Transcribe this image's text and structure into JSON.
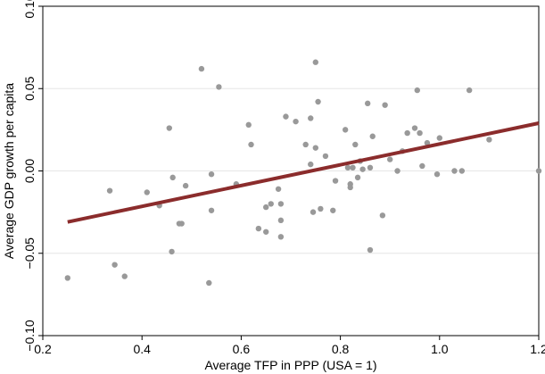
{
  "chart_data": {
    "type": "scatter",
    "xlabel": "Average TFP in PPP (USA = 1)",
    "ylabel": "Average GDP growth per capita",
    "xlim": [
      0.2,
      1.2
    ],
    "ylim": [
      -0.1,
      0.1
    ],
    "xticks": [
      0.2,
      0.4,
      0.6,
      0.8,
      1.0,
      1.2
    ],
    "xtick_labels": [
      "0.2",
      "0.4",
      "0.6",
      "0.8",
      "1.0",
      "1.2"
    ],
    "yticks": [
      -0.1,
      -0.05,
      0.0,
      0.05,
      0.1
    ],
    "ytick_labels": [
      "−0.10",
      "−0.05",
      "0.00",
      "0.05",
      "0.10"
    ],
    "grid": "horizontal",
    "point_color": "#999999",
    "fit_color": "#8b2c2c",
    "fit_line": {
      "x": [
        0.25,
        1.2
      ],
      "y": [
        -0.031,
        0.029
      ]
    },
    "points": [
      [
        0.25,
        -0.065
      ],
      [
        0.335,
        -0.012
      ],
      [
        0.345,
        -0.057
      ],
      [
        0.365,
        -0.064
      ],
      [
        0.41,
        -0.013
      ],
      [
        0.435,
        -0.021
      ],
      [
        0.455,
        0.026
      ],
      [
        0.46,
        -0.049
      ],
      [
        0.462,
        -0.004
      ],
      [
        0.475,
        -0.032
      ],
      [
        0.48,
        -0.032
      ],
      [
        0.488,
        -0.009
      ],
      [
        0.52,
        0.062
      ],
      [
        0.535,
        -0.068
      ],
      [
        0.54,
        -0.002
      ],
      [
        0.54,
        -0.024
      ],
      [
        0.555,
        0.051
      ],
      [
        0.59,
        -0.008
      ],
      [
        0.615,
        0.028
      ],
      [
        0.62,
        0.016
      ],
      [
        0.635,
        -0.035
      ],
      [
        0.65,
        -0.037
      ],
      [
        0.65,
        -0.022
      ],
      [
        0.66,
        -0.02
      ],
      [
        0.675,
        -0.011
      ],
      [
        0.68,
        -0.02
      ],
      [
        0.68,
        -0.03
      ],
      [
        0.68,
        -0.04
      ],
      [
        0.69,
        0.033
      ],
      [
        0.71,
        0.03
      ],
      [
        0.73,
        0.016
      ],
      [
        0.74,
        0.032
      ],
      [
        0.74,
        0.004
      ],
      [
        0.745,
        -0.025
      ],
      [
        0.75,
        0.014
      ],
      [
        0.75,
        0.066
      ],
      [
        0.755,
        0.042
      ],
      [
        0.76,
        -0.023
      ],
      [
        0.77,
        0.009
      ],
      [
        0.785,
        -0.024
      ],
      [
        0.79,
        -0.006
      ],
      [
        0.81,
        0.025
      ],
      [
        0.815,
        0.002
      ],
      [
        0.82,
        -0.01
      ],
      [
        0.82,
        -0.008
      ],
      [
        0.825,
        0.002
      ],
      [
        0.83,
        0.016
      ],
      [
        0.835,
        -0.004
      ],
      [
        0.84,
        0.006
      ],
      [
        0.845,
        0.001
      ],
      [
        0.855,
        0.041
      ],
      [
        0.86,
        0.002
      ],
      [
        0.86,
        -0.048
      ],
      [
        0.865,
        0.021
      ],
      [
        0.885,
        -0.027
      ],
      [
        0.89,
        0.04
      ],
      [
        0.9,
        0.007
      ],
      [
        0.915,
        0.0
      ],
      [
        0.925,
        0.012
      ],
      [
        0.935,
        0.023
      ],
      [
        0.95,
        0.026
      ],
      [
        0.955,
        0.049
      ],
      [
        0.96,
        0.023
      ],
      [
        0.965,
        0.003
      ],
      [
        0.975,
        0.017
      ],
      [
        0.995,
        -0.002
      ],
      [
        1.0,
        0.02
      ],
      [
        1.03,
        0.0
      ],
      [
        1.045,
        0.0
      ],
      [
        1.06,
        0.049
      ],
      [
        1.1,
        0.019
      ],
      [
        1.2,
        0.0
      ]
    ]
  }
}
